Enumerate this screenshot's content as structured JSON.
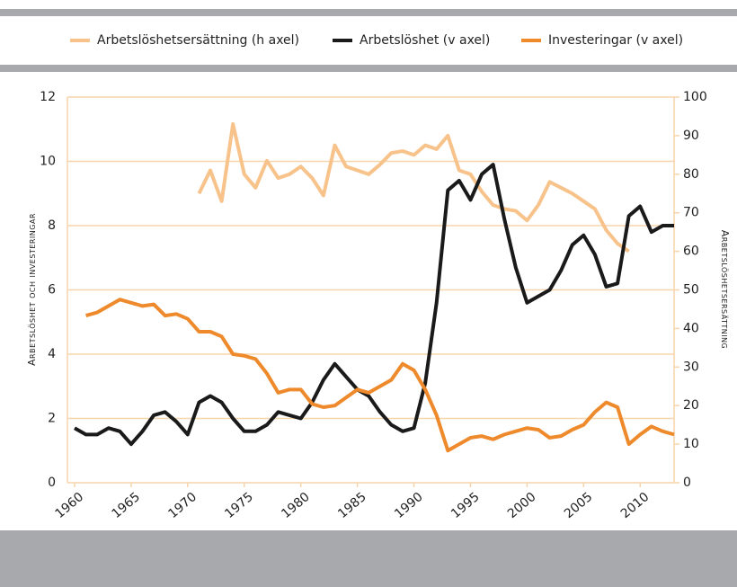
{
  "chart_data": {
    "type": "line",
    "y_label": "Arbetslöshet och investeringar",
    "y2_label": "Arbetslöshetsersättning",
    "x": [
      1960,
      1961,
      1962,
      1963,
      1964,
      1965,
      1966,
      1967,
      1968,
      1969,
      1970,
      1971,
      1972,
      1973,
      1974,
      1975,
      1976,
      1977,
      1978,
      1979,
      1980,
      1981,
      1982,
      1983,
      1984,
      1985,
      1986,
      1987,
      1988,
      1989,
      1990,
      1991,
      1992,
      1993,
      1994,
      1995,
      1996,
      1997,
      1998,
      1999,
      2000,
      2001,
      2002,
      2003,
      2004,
      2005,
      2006,
      2007,
      2008,
      2009,
      2010,
      2011,
      2012,
      2013
    ],
    "series": [
      {
        "name": "Arbetslöshetsersättning (h axel)",
        "color": "#f8c38a",
        "axis": "y2",
        "values": [
          null,
          null,
          null,
          null,
          null,
          null,
          null,
          null,
          null,
          null,
          null,
          75,
          81,
          73,
          93,
          80,
          76.5,
          83.5,
          79,
          80,
          82,
          79,
          74.5,
          87.5,
          82,
          81,
          80,
          82.5,
          85.5,
          86,
          85,
          87.5,
          86.5,
          90,
          81,
          80,
          75.5,
          72,
          71,
          70.5,
          68,
          72,
          78,
          76.5,
          75,
          73,
          71,
          65.5,
          62,
          60,
          null,
          null,
          null,
          null
        ]
      },
      {
        "name": "Arbetslöshet (v axel)",
        "color": "#1a1a1a",
        "axis": "y",
        "values": [
          1.7,
          1.5,
          1.5,
          1.7,
          1.6,
          1.2,
          1.6,
          2.1,
          2.2,
          1.9,
          1.5,
          2.5,
          2.7,
          2.5,
          2.0,
          1.6,
          1.6,
          1.8,
          2.2,
          2.1,
          2.0,
          2.5,
          3.2,
          3.7,
          3.3,
          2.9,
          2.7,
          2.2,
          1.8,
          1.6,
          1.7,
          3.1,
          5.6,
          9.1,
          9.4,
          8.8,
          9.6,
          9.9,
          8.2,
          6.7,
          5.6,
          5.8,
          6.0,
          6.6,
          7.4,
          7.7,
          7.1,
          6.1,
          6.2,
          8.3,
          8.6,
          7.8,
          8.0,
          8.0
        ]
      },
      {
        "name": "Investeringar (v axel)",
        "color": "#ee8a2c",
        "axis": "y",
        "values": [
          null,
          5.2,
          5.3,
          5.5,
          5.7,
          5.6,
          5.5,
          5.55,
          5.2,
          5.25,
          5.1,
          4.7,
          4.7,
          4.55,
          4.0,
          3.95,
          3.85,
          3.4,
          2.8,
          2.9,
          2.9,
          2.45,
          2.35,
          2.4,
          2.65,
          2.9,
          2.8,
          3.0,
          3.2,
          3.7,
          3.5,
          2.9,
          2.1,
          1.0,
          1.2,
          1.4,
          1.45,
          1.35,
          1.5,
          1.6,
          1.7,
          1.65,
          1.4,
          1.45,
          1.65,
          1.8,
          2.2,
          2.5,
          2.35,
          1.2,
          1.5,
          1.75,
          1.6,
          1.5
        ]
      }
    ],
    "xlim": [
      1960,
      2013
    ],
    "xticks": [
      1960,
      1965,
      1970,
      1975,
      1980,
      1985,
      1990,
      1995,
      2000,
      2005,
      2010
    ],
    "ylim": [
      0,
      12
    ],
    "yticks": [
      0,
      2,
      4,
      6,
      8,
      10,
      12
    ],
    "y2lim": [
      0,
      100
    ],
    "y2ticks": [
      0,
      10,
      20,
      30,
      40,
      50,
      60,
      70,
      80,
      90,
      100
    ],
    "grid": true
  }
}
